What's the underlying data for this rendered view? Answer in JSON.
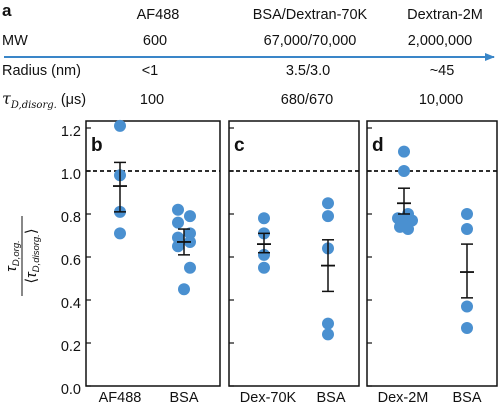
{
  "panel_a": {
    "label": "a",
    "header": [
      "AF488",
      "BSA/Dextran-70K",
      "Dextran-2M"
    ],
    "rows": [
      {
        "label": "MW",
        "values": [
          "600",
          "67,000/70,000",
          "2,000,000"
        ]
      },
      {
        "label": "Radius (nm)",
        "values": [
          "<1",
          "3.5/3.0",
          "~45"
        ]
      },
      {
        "label_main": "τ",
        "label_sub": "D,disorg.",
        "label_unit": " (μs)",
        "values": [
          "100",
          "680/670",
          "10,000"
        ]
      }
    ],
    "arrow_color": "#3a86c8"
  },
  "colors": {
    "point": "#4a90d0",
    "errorbar": "#111111",
    "reference_line": "#111111"
  },
  "chart_data": {
    "type": "scatter",
    "y_label": {
      "num_main": "τ",
      "num_sub": "D,org.",
      "den_main": "τ",
      "den_sub": "D,disorg."
    },
    "ylim": [
      0,
      1.2
    ],
    "y_ticks": [
      0,
      0.2,
      0.4,
      0.6,
      0.8,
      1.0,
      1.2
    ],
    "y_tick_labels": [
      "0.0",
      "0.2",
      "0.4",
      "0.6",
      "0.8",
      "1.0",
      "1.2"
    ],
    "reference_line": 1.0,
    "grid": false,
    "panels": [
      {
        "label": "b",
        "categories": [
          "AF488",
          "BSA"
        ],
        "groups": [
          {
            "category": "AF488",
            "points": [
              1.21,
              0.98,
              0.81,
              0.71
            ],
            "mean": 0.93,
            "err_low": 0.81,
            "err_high": 1.04
          },
          {
            "category": "BSA",
            "points": [
              0.82,
              0.79,
              0.76,
              0.71,
              0.69,
              0.67,
              0.65,
              0.55,
              0.45
            ],
            "mean": 0.67,
            "err_low": 0.61,
            "err_high": 0.73
          }
        ]
      },
      {
        "label": "c",
        "categories": [
          "Dex-70K",
          "BSA"
        ],
        "groups": [
          {
            "category": "Dex-70K",
            "points": [
              0.78,
              0.71,
              0.61,
              0.55
            ],
            "mean": 0.66,
            "err_low": 0.62,
            "err_high": 0.71
          },
          {
            "category": "BSA",
            "points": [
              0.85,
              0.79,
              0.64,
              0.29,
              0.24
            ],
            "mean": 0.56,
            "err_low": 0.44,
            "err_high": 0.68
          }
        ]
      },
      {
        "label": "d",
        "categories": [
          "Dex-2M",
          "BSA"
        ],
        "groups": [
          {
            "category": "Dex-2M",
            "points": [
              1.09,
              1.0,
              0.8,
              0.78,
              0.77,
              0.76,
              0.74,
              0.73
            ],
            "mean": 0.85,
            "err_low": 0.8,
            "err_high": 0.92
          },
          {
            "category": "BSA",
            "points": [
              0.8,
              0.73,
              0.37,
              0.27
            ],
            "mean": 0.53,
            "err_low": 0.41,
            "err_high": 0.66
          }
        ]
      }
    ]
  }
}
